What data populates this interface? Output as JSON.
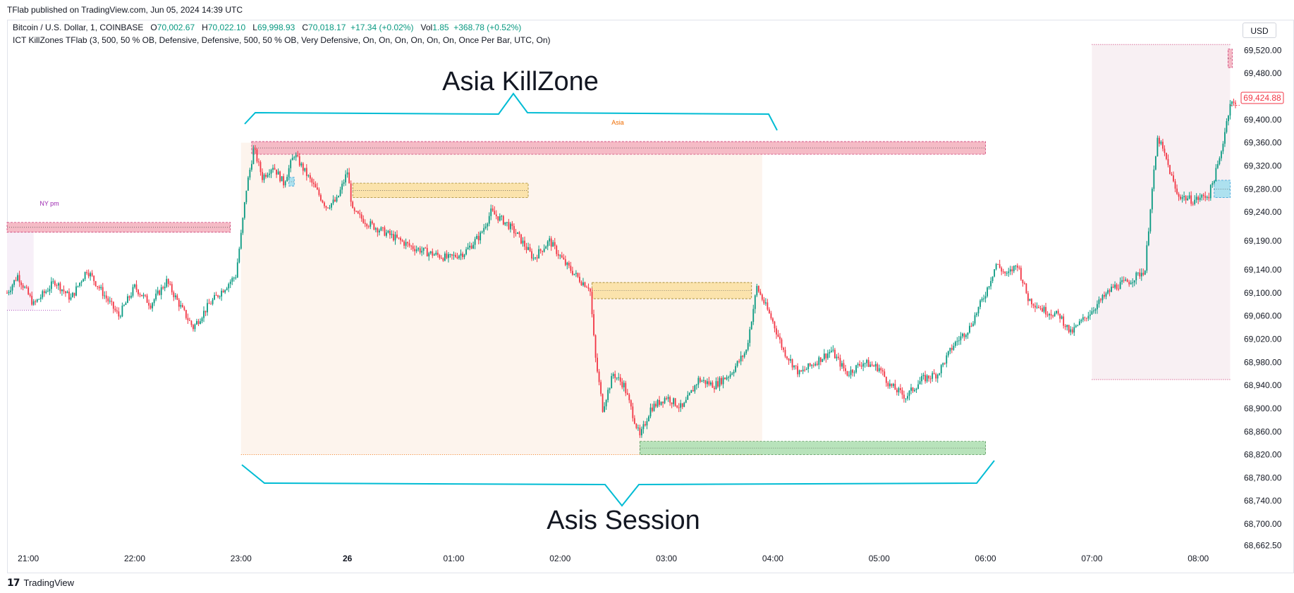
{
  "header": {
    "published": "TFlab published on TradingView.com, Jun 05, 2024 14:39 UTC"
  },
  "legend": {
    "symbol": "Bitcoin / U.S. Dollar, 1, COINBASE",
    "o_label": "O",
    "o_value": "70,002.67",
    "h_label": "H",
    "h_value": "70,022.10",
    "l_label": "L",
    "l_value": "69,998.93",
    "c_label": "C",
    "c_value": "70,018.17",
    "change": "+17.34 (+0.02%)",
    "vol_label": "Vol",
    "vol_value": "1.85",
    "vol_change": "+368.78 (+0.52%)",
    "indicator": "ICT KillZones TFlab (3, 500, 50 % OB, Defensive, Defensive, 500, 50 % OB, Very Defensive, On, On, On, On, On, On, Once Per Bar, UTC, On)"
  },
  "currency_button": "USD",
  "footer": {
    "brand": "TradingView",
    "logo_mark": "17"
  },
  "annotations": {
    "asia_killzone": "Asia KillZone",
    "asis_session": "Asis Session",
    "asia_label": "Asia",
    "ny_pm_label": "NY pm"
  },
  "colors": {
    "up": "#089981",
    "down": "#f23645",
    "annotation": "#00bcd4",
    "session_fill": "#fdf3ec",
    "supply_zone": "#f5b8c4",
    "order_block": "#fbe3a9",
    "demand_zone": "#b5e2b8",
    "blue_zone": "#a9e1ef",
    "ny_fill": "#f7eef8",
    "last_price": "#f23645"
  },
  "chart_data": {
    "type": "candlestick",
    "title": "",
    "xlabel": "",
    "ylabel": "",
    "x_ticks": [
      "21:00",
      "22:00",
      "23:00",
      "26",
      "01:00",
      "02:00",
      "03:00",
      "04:00",
      "05:00",
      "06:00",
      "07:00",
      "08:00"
    ],
    "x_tick_hours": [
      -3,
      -2,
      -1,
      0,
      1,
      2,
      3,
      4,
      5,
      6,
      7,
      8
    ],
    "y_ticks": [
      "69,520.00",
      "69,480.00",
      "69,440.00",
      "69,400.00",
      "69,360.00",
      "69,320.00",
      "69,280.00",
      "69,240.00",
      "69,190.00",
      "69,140.00",
      "69,100.00",
      "69,060.00",
      "69,020.00",
      "68,980.00",
      "68,940.00",
      "68,900.00",
      "68,860.00",
      "68,820.00",
      "68,780.00",
      "68,740.00",
      "68,700.00",
      "68,662.50"
    ],
    "ylim": [
      68650,
      69540
    ],
    "xlim_hours": [
      -3.2,
      8.35
    ],
    "last_price": "69,424.88",
    "last_price_value": 69424.88,
    "grid": false,
    "path_points": [
      [
        -3.2,
        69100
      ],
      [
        -3.1,
        69130
      ],
      [
        -2.95,
        69080
      ],
      [
        -2.75,
        69120
      ],
      [
        -2.6,
        69090
      ],
      [
        -2.45,
        69140
      ],
      [
        -2.3,
        69100
      ],
      [
        -2.15,
        69060
      ],
      [
        -2.0,
        69110
      ],
      [
        -1.85,
        69080
      ],
      [
        -1.7,
        69120
      ],
      [
        -1.55,
        69070
      ],
      [
        -1.45,
        69040
      ],
      [
        -1.3,
        69080
      ],
      [
        -1.15,
        69110
      ],
      [
        -1.05,
        69130
      ],
      [
        -1.0,
        69200
      ],
      [
        -0.95,
        69280
      ],
      [
        -0.88,
        69350
      ],
      [
        -0.8,
        69300
      ],
      [
        -0.7,
        69320
      ],
      [
        -0.6,
        69290
      ],
      [
        -0.5,
        69340
      ],
      [
        -0.4,
        69310
      ],
      [
        -0.3,
        69280
      ],
      [
        -0.2,
        69250
      ],
      [
        -0.1,
        69260
      ],
      [
        0.0,
        69310
      ],
      [
        0.05,
        69240
      ],
      [
        0.2,
        69220
      ],
      [
        0.4,
        69200
      ],
      [
        0.6,
        69180
      ],
      [
        0.75,
        69170
      ],
      [
        0.95,
        69160
      ],
      [
        1.1,
        69170
      ],
      [
        1.25,
        69200
      ],
      [
        1.35,
        69240
      ],
      [
        1.5,
        69220
      ],
      [
        1.6,
        69200
      ],
      [
        1.75,
        69160
      ],
      [
        1.9,
        69190
      ],
      [
        2.05,
        69150
      ],
      [
        2.2,
        69120
      ],
      [
        2.28,
        69110
      ],
      [
        2.33,
        68990
      ],
      [
        2.4,
        68900
      ],
      [
        2.5,
        68960
      ],
      [
        2.6,
        68940
      ],
      [
        2.7,
        68880
      ],
      [
        2.75,
        68850
      ],
      [
        2.85,
        68900
      ],
      [
        3.0,
        68920
      ],
      [
        3.15,
        68900
      ],
      [
        3.3,
        68950
      ],
      [
        3.45,
        68940
      ],
      [
        3.6,
        68960
      ],
      [
        3.75,
        69000
      ],
      [
        3.85,
        69110
      ],
      [
        3.9,
        69090
      ],
      [
        4.0,
        69050
      ],
      [
        4.1,
        69000
      ],
      [
        4.25,
        68960
      ],
      [
        4.4,
        68980
      ],
      [
        4.55,
        69000
      ],
      [
        4.7,
        68960
      ],
      [
        4.85,
        68980
      ],
      [
        5.0,
        68970
      ],
      [
        5.1,
        68940
      ],
      [
        5.25,
        68920
      ],
      [
        5.4,
        68950
      ],
      [
        5.55,
        68960
      ],
      [
        5.7,
        69010
      ],
      [
        5.85,
        69040
      ],
      [
        6.0,
        69100
      ],
      [
        6.1,
        69150
      ],
      [
        6.2,
        69130
      ],
      [
        6.3,
        69150
      ],
      [
        6.4,
        69090
      ],
      [
        6.55,
        69070
      ],
      [
        6.7,
        69060
      ],
      [
        6.8,
        69030
      ],
      [
        6.95,
        69060
      ],
      [
        7.1,
        69090
      ],
      [
        7.2,
        69110
      ],
      [
        7.35,
        69120
      ],
      [
        7.5,
        69140
      ],
      [
        7.55,
        69250
      ],
      [
        7.62,
        69370
      ],
      [
        7.7,
        69330
      ],
      [
        7.8,
        69270
      ],
      [
        7.95,
        69260
      ],
      [
        8.1,
        69270
      ],
      [
        8.2,
        69330
      ],
      [
        8.3,
        69430
      ],
      [
        8.35,
        69425
      ]
    ],
    "zones": [
      {
        "kind": "session",
        "x0": -1.0,
        "x1": 3.9,
        "y0": 68820,
        "y1": 69360
      },
      {
        "kind": "ny_session",
        "x0": -3.2,
        "x1": -2.95,
        "y0": 69070,
        "y1": 69210
      },
      {
        "kind": "session_right",
        "x0": 7.0,
        "x1": 8.3,
        "y0": 68950,
        "y1": 69530
      },
      {
        "kind": "supply",
        "x0": -0.9,
        "x1": 6.0,
        "y0": 69340,
        "y1": 69362
      },
      {
        "kind": "supply",
        "x0": -3.2,
        "x1": -1.1,
        "y0": 69205,
        "y1": 69222
      },
      {
        "kind": "supply",
        "x0": 8.28,
        "x1": 8.32,
        "y0": 69490,
        "y1": 69522
      },
      {
        "kind": "ob",
        "x0": 0.05,
        "x1": 1.7,
        "y0": 69265,
        "y1": 69290
      },
      {
        "kind": "ob",
        "x0": 2.3,
        "x1": 3.8,
        "y0": 69090,
        "y1": 69118
      },
      {
        "kind": "demand",
        "x0": 2.75,
        "x1": 6.0,
        "y0": 68820,
        "y1": 68843
      },
      {
        "kind": "blue",
        "x0": 8.15,
        "x1": 8.3,
        "y0": 69265,
        "y1": 69295
      },
      {
        "kind": "blue",
        "x0": -0.55,
        "x1": -0.5,
        "y0": 69285,
        "y1": 69300
      }
    ]
  }
}
